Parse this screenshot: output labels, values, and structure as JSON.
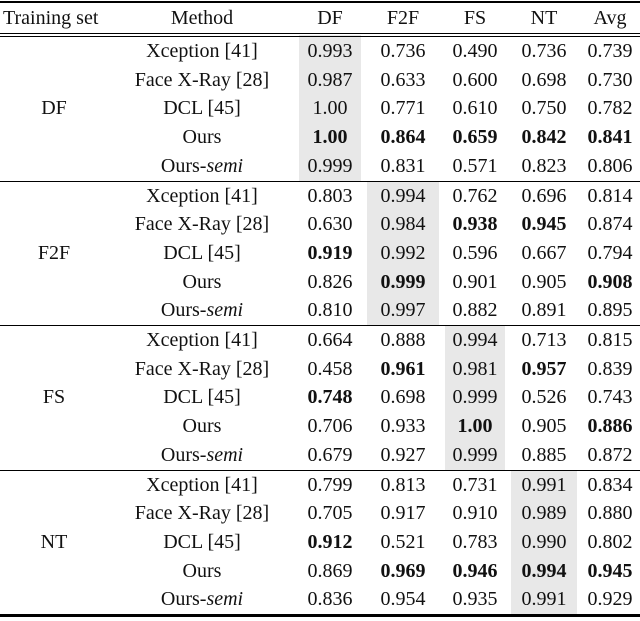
{
  "colors": {
    "highlight_bg": "#e8e8e8",
    "rule": "#000000",
    "text": "#111111",
    "background": "#ffffff"
  },
  "table": {
    "col_headers": [
      "Training set",
      "Method",
      "DF",
      "F2F",
      "FS",
      "NT",
      "Avg"
    ],
    "columns": [
      "DF",
      "F2F",
      "FS",
      "NT",
      "Avg"
    ],
    "groups": [
      {
        "training_set": "DF",
        "highlight": "DF",
        "rows": [
          {
            "method": "Xception [41]",
            "values": [
              "0.993",
              "0.736",
              "0.490",
              "0.736",
              "0.739"
            ],
            "bold": [
              false,
              false,
              false,
              false,
              false
            ]
          },
          {
            "method": "Face X-Ray [28]",
            "values": [
              "0.987",
              "0.633",
              "0.600",
              "0.698",
              "0.730"
            ],
            "bold": [
              false,
              false,
              false,
              false,
              false
            ]
          },
          {
            "method": "DCL [45]",
            "values": [
              "1.00",
              "0.771",
              "0.610",
              "0.750",
              "0.782"
            ],
            "bold": [
              false,
              false,
              false,
              false,
              false
            ]
          },
          {
            "method": "Ours",
            "values": [
              "1.00",
              "0.864",
              "0.659",
              "0.842",
              "0.841"
            ],
            "bold": [
              true,
              true,
              true,
              true,
              true
            ]
          },
          {
            "method": "Ours-*semi*",
            "values": [
              "0.999",
              "0.831",
              "0.571",
              "0.823",
              "0.806"
            ],
            "bold": [
              false,
              false,
              false,
              false,
              false
            ]
          }
        ]
      },
      {
        "training_set": "F2F",
        "highlight": "F2F",
        "rows": [
          {
            "method": "Xception [41]",
            "values": [
              "0.803",
              "0.994",
              "0.762",
              "0.696",
              "0.814"
            ],
            "bold": [
              false,
              false,
              false,
              false,
              false
            ]
          },
          {
            "method": "Face X-Ray [28]",
            "values": [
              "0.630",
              "0.984",
              "0.938",
              "0.945",
              "0.874"
            ],
            "bold": [
              false,
              false,
              true,
              true,
              false
            ]
          },
          {
            "method": "DCL [45]",
            "values": [
              "0.919",
              "0.992",
              "0.596",
              "0.667",
              "0.794"
            ],
            "bold": [
              true,
              false,
              false,
              false,
              false
            ]
          },
          {
            "method": "Ours",
            "values": [
              "0.826",
              "0.999",
              "0.901",
              "0.905",
              "0.908"
            ],
            "bold": [
              false,
              true,
              false,
              false,
              true
            ]
          },
          {
            "method": "Ours-*semi*",
            "values": [
              "0.810",
              "0.997",
              "0.882",
              "0.891",
              "0.895"
            ],
            "bold": [
              false,
              false,
              false,
              false,
              false
            ]
          }
        ]
      },
      {
        "training_set": "FS",
        "highlight": "FS",
        "rows": [
          {
            "method": "Xception [41]",
            "values": [
              "0.664",
              "0.888",
              "0.994",
              "0.713",
              "0.815"
            ],
            "bold": [
              false,
              false,
              false,
              false,
              false
            ]
          },
          {
            "method": "Face X-Ray [28]",
            "values": [
              "0.458",
              "0.961",
              "0.981",
              "0.957",
              "0.839"
            ],
            "bold": [
              false,
              true,
              false,
              true,
              false
            ]
          },
          {
            "method": "DCL [45]",
            "values": [
              "0.748",
              "0.698",
              "0.999",
              "0.526",
              "0.743"
            ],
            "bold": [
              true,
              false,
              false,
              false,
              false
            ]
          },
          {
            "method": "Ours",
            "values": [
              "0.706",
              "0.933",
              "1.00",
              "0.905",
              "0.886"
            ],
            "bold": [
              false,
              false,
              true,
              false,
              true
            ]
          },
          {
            "method": "Ours-*semi*",
            "values": [
              "0.679",
              "0.927",
              "0.999",
              "0.885",
              "0.872"
            ],
            "bold": [
              false,
              false,
              false,
              false,
              false
            ]
          }
        ]
      },
      {
        "training_set": "NT",
        "highlight": "NT",
        "rows": [
          {
            "method": "Xception [41]",
            "values": [
              "0.799",
              "0.813",
              "0.731",
              "0.991",
              "0.834"
            ],
            "bold": [
              false,
              false,
              false,
              false,
              false
            ]
          },
          {
            "method": "Face X-Ray [28]",
            "values": [
              "0.705",
              "0.917",
              "0.910",
              "0.989",
              "0.880"
            ],
            "bold": [
              false,
              false,
              false,
              false,
              false
            ]
          },
          {
            "method": "DCL [45]",
            "values": [
              "0.912",
              "0.521",
              "0.783",
              "0.990",
              "0.802"
            ],
            "bold": [
              true,
              false,
              false,
              false,
              false
            ]
          },
          {
            "method": "Ours",
            "values": [
              "0.869",
              "0.969",
              "0.946",
              "0.994",
              "0.945"
            ],
            "bold": [
              false,
              true,
              true,
              true,
              true
            ]
          },
          {
            "method": "Ours-*semi*",
            "values": [
              "0.836",
              "0.954",
              "0.935",
              "0.991",
              "0.929"
            ],
            "bold": [
              false,
              false,
              false,
              false,
              false
            ]
          }
        ]
      }
    ]
  }
}
